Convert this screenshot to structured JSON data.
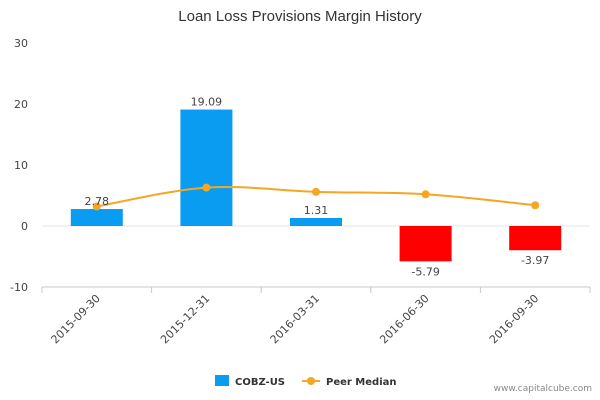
{
  "chart_data": {
    "type": "bar",
    "title": "Loan Loss Provisions Margin History",
    "categories": [
      "2015-09-30",
      "2015-12-31",
      "2016-03-31",
      "2016-06-30",
      "2016-09-30"
    ],
    "series": [
      {
        "name": "COBZ-US",
        "type": "bar",
        "values": [
          2.78,
          19.09,
          1.31,
          -5.79,
          -3.97
        ],
        "data_labels": [
          "2.78",
          "19.09",
          "1.31",
          "-5.79",
          "-3.97"
        ],
        "positive_color": "#0a9cf0",
        "negative_color": "#ff0000"
      },
      {
        "name": "Peer Median",
        "type": "line",
        "values": [
          3.2,
          6.3,
          5.6,
          5.2,
          3.4
        ],
        "color": "#f5a623"
      }
    ],
    "ylim": [
      -10,
      30
    ],
    "yticks": [
      -10,
      0,
      10,
      20,
      30
    ],
    "ytick_labels": [
      "-10",
      "0",
      "10",
      "20",
      "30"
    ],
    "xlabel": "",
    "ylabel": "",
    "legend_position": "bottom-center"
  },
  "watermark": "www.capitalcube.com"
}
